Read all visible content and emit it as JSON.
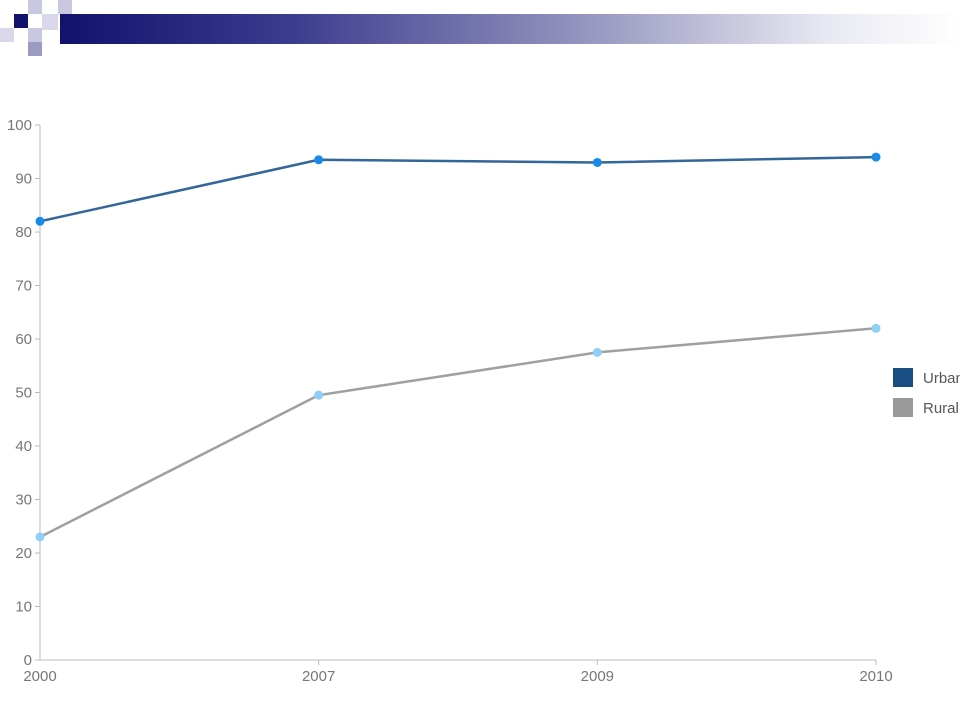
{
  "colors": {
    "header_dark": "#12126e",
    "header_light": "#9a9ac2"
  },
  "chart_data": {
    "type": "line",
    "x": [
      "2000",
      "2007",
      "2009",
      "2010"
    ],
    "series": [
      {
        "name": "Urban",
        "values": [
          82,
          93.5,
          93,
          94
        ],
        "line_color": "#336699",
        "point_color": "#1a8ae8",
        "legend_color": "#184e82"
      },
      {
        "name": "Rural",
        "values": [
          23,
          49.5,
          57.5,
          62
        ],
        "line_color": "#a0a0a0",
        "point_color": "#8fcff7",
        "legend_color": "#9a9a9a"
      }
    ],
    "ylim": [
      0,
      100
    ],
    "yticks": [
      0,
      10,
      20,
      30,
      40,
      50,
      60,
      70,
      80,
      90,
      100
    ],
    "xlabel": "",
    "ylabel": "",
    "grid": false,
    "legend_position": "right"
  }
}
